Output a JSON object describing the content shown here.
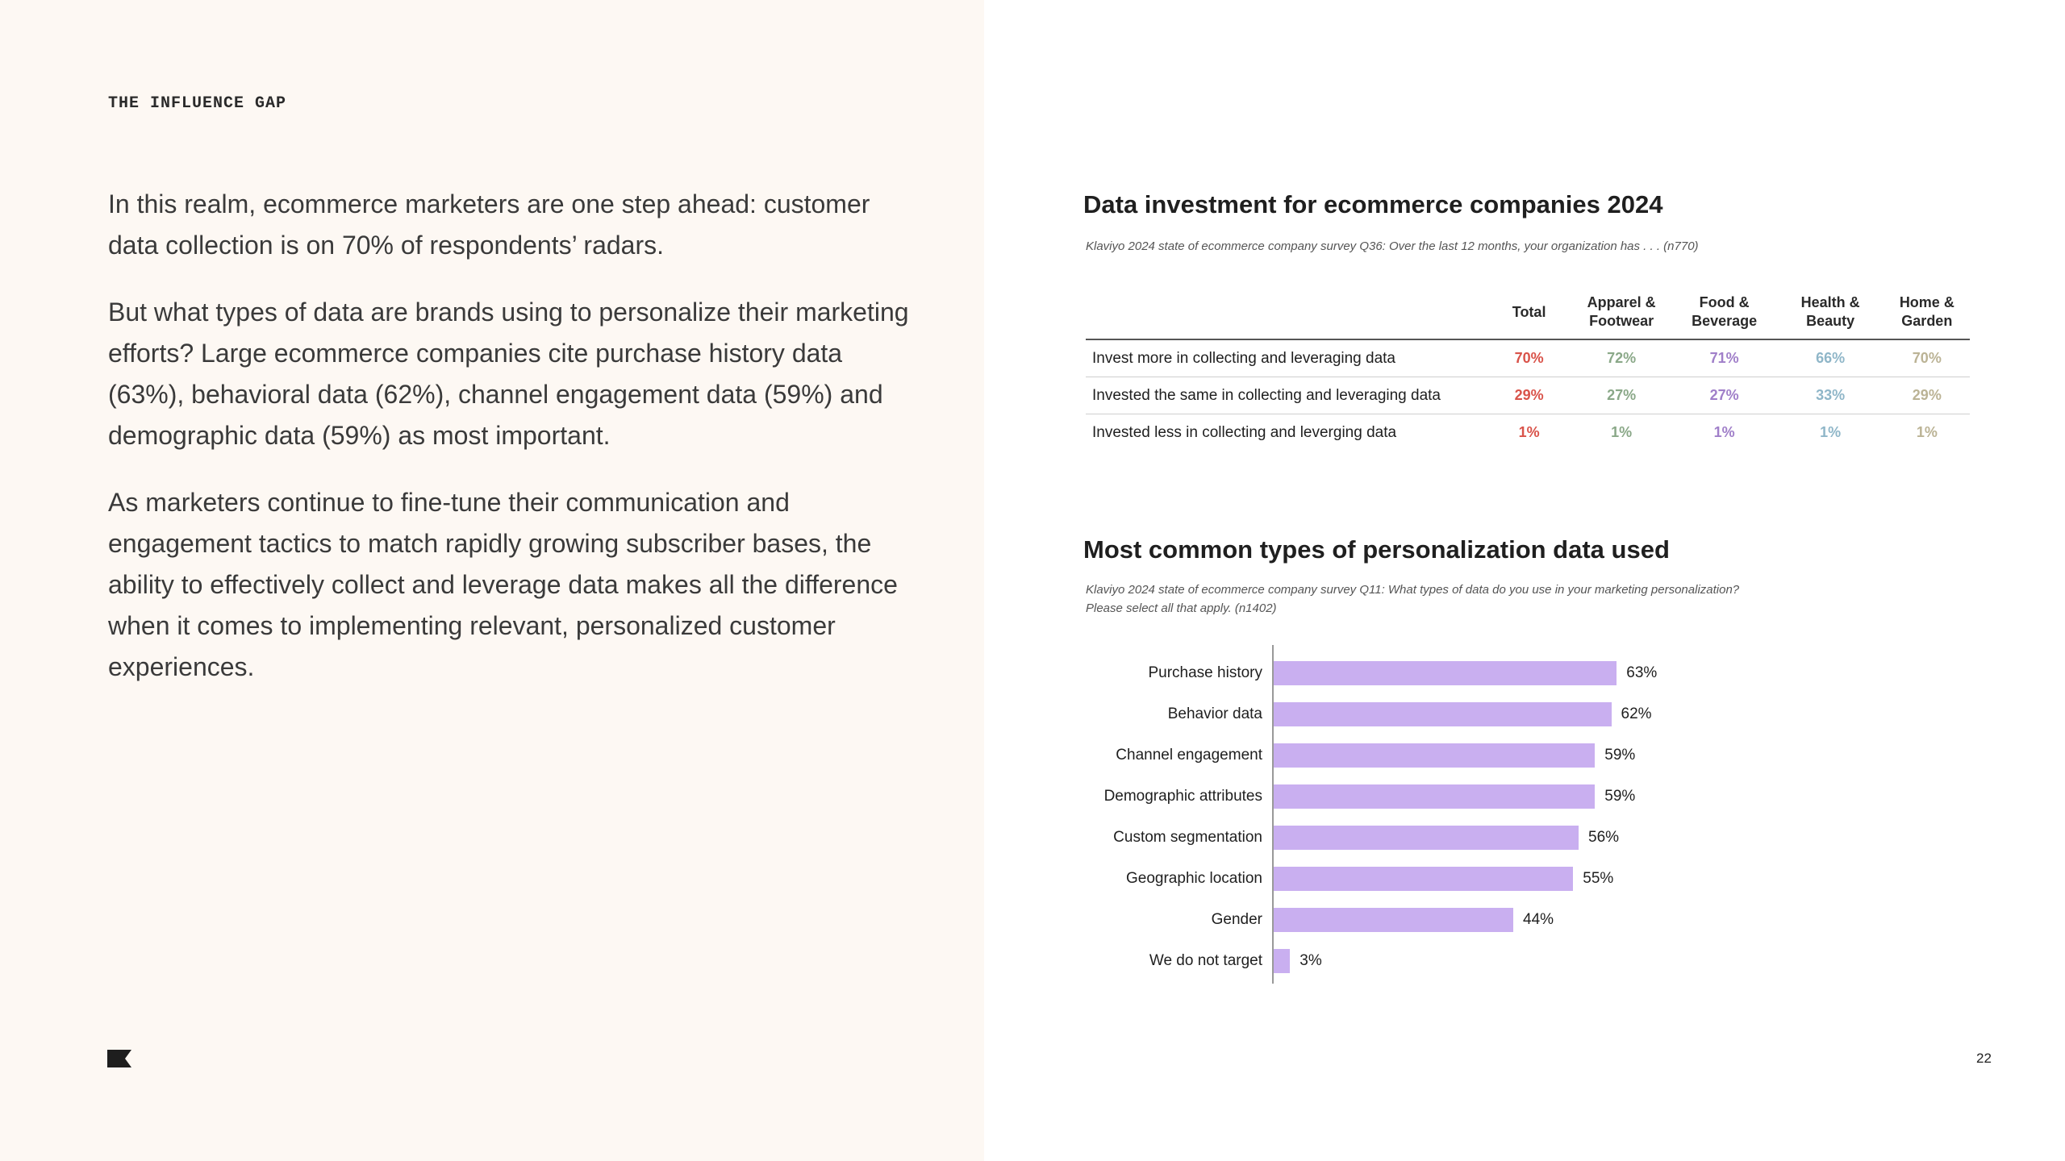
{
  "section_label": "THE INFLUENCE GAP",
  "paragraphs": [
    "In this realm, ecommerce marketers are one step ahead: customer data collection is on 70% of respondents’ radars.",
    "But what types of data are brands using to personalize their marketing efforts? Large ecommerce companies cite purchase history data (63%), behavioral data (62%), channel engagement data (59%) and demographic data (59%) as most important.",
    "As marketers continue to fine-tune their communication and engagement tactics to match rapidly growing subscriber bases, the ability to effectively collect and leverage data makes all the difference when it comes to implementing relevant, personalized customer experiences."
  ],
  "page_number": "22",
  "logo_icon": "klaviyo-flag-icon",
  "table": {
    "title": "Data investment for ecommerce companies 2024",
    "source": "Klaviyo 2024 state of ecommerce company survey Q36: Over the last 12 months, your organization has . . . (n770)",
    "columns": [
      {
        "label": "Total",
        "color": "#d9534a"
      },
      {
        "label": "Apparel & Footwear",
        "color": "#8aa888"
      },
      {
        "label": "Food & Beverage",
        "color": "#a07fc9"
      },
      {
        "label": "Health & Beauty",
        "color": "#8fb6c8"
      },
      {
        "label": "Home & Garden",
        "color": "#bbb395"
      }
    ],
    "rows": [
      {
        "label": "Invest more in collecting and leveraging data",
        "values": [
          "70%",
          "72%",
          "71%",
          "66%",
          "70%"
        ]
      },
      {
        "label": "Invested the same in collecting and leveraging data",
        "values": [
          "29%",
          "27%",
          "27%",
          "33%",
          "29%"
        ]
      },
      {
        "label": "Invested less in collecting and leverging data",
        "values": [
          "1%",
          "1%",
          "1%",
          "1%",
          "1%"
        ]
      }
    ]
  },
  "chart": {
    "title": "Most common types of personalization data used",
    "source_lines": [
      "Klaviyo 2024 state of ecommerce company survey Q11: What types of data do you use in your marketing personalization?",
      "Please select all that apply. (n1402)"
    ]
  },
  "chart_data": {
    "type": "bar",
    "orientation": "horizontal",
    "categories": [
      "Purchase history",
      "Behavior data",
      "Channel engagement",
      "Demographic attributes",
      "Custom segmentation",
      "Geographic location",
      "Gender",
      "We do not target"
    ],
    "values": [
      63,
      62,
      59,
      59,
      56,
      55,
      44,
      3
    ],
    "value_labels": [
      "63%",
      "62%",
      "59%",
      "59%",
      "56%",
      "55%",
      "44%",
      "3%"
    ],
    "bar_color": "#c9aff0",
    "grid": false
  }
}
